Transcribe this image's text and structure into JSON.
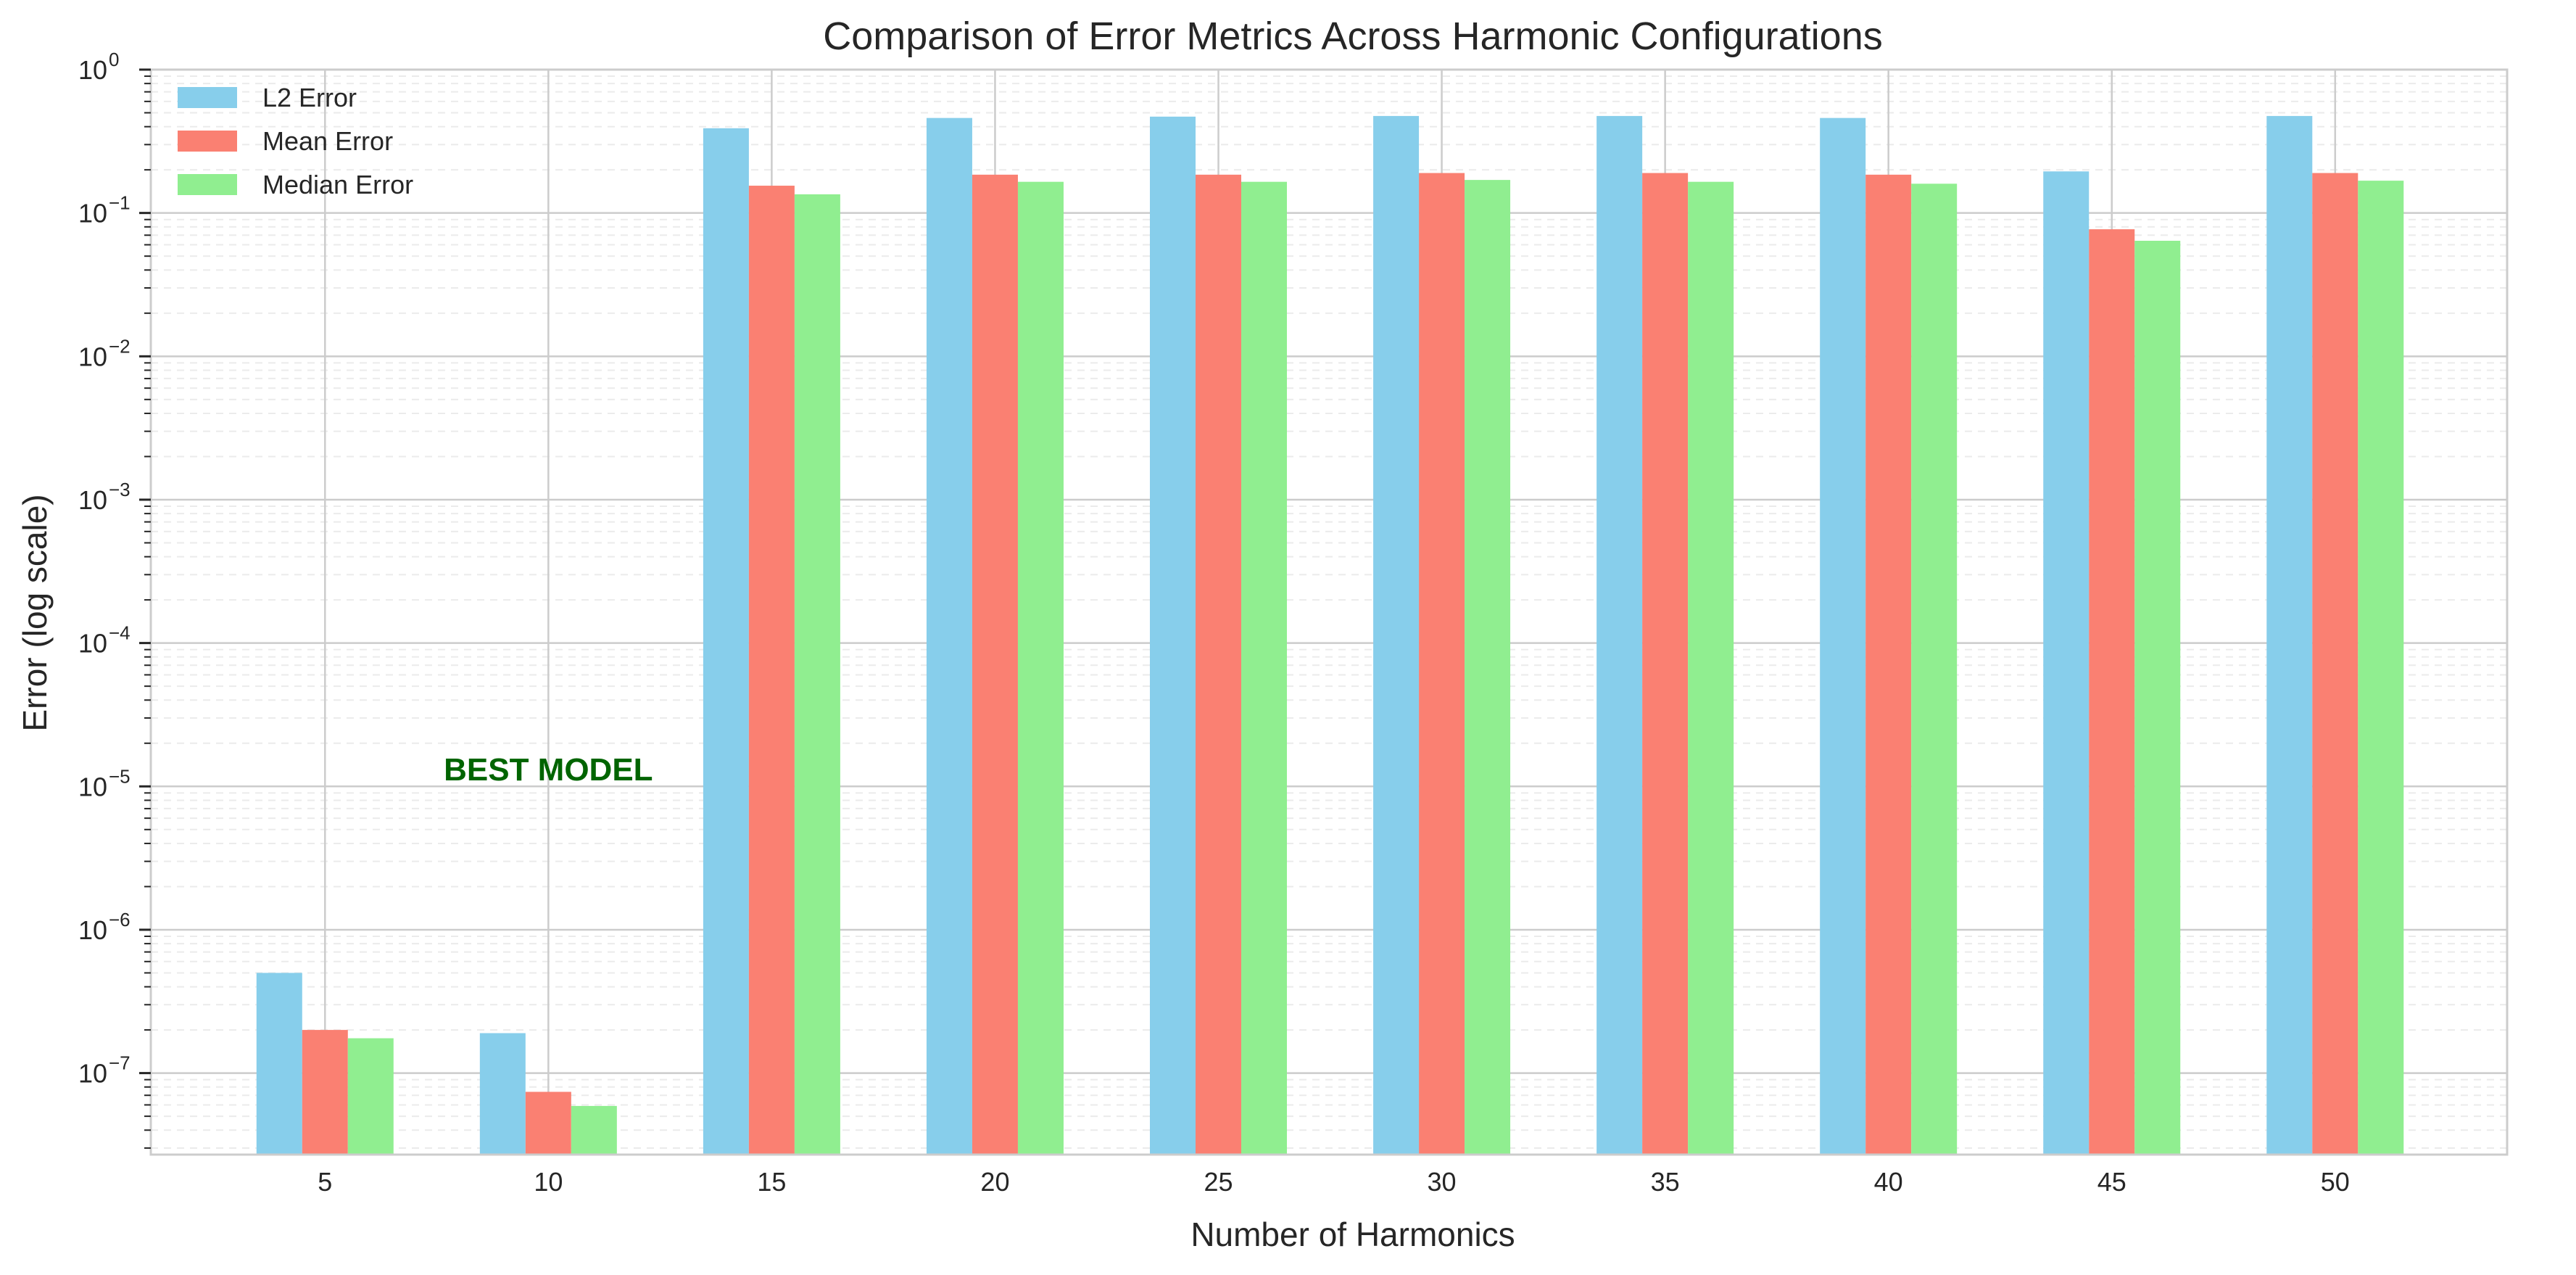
{
  "chart_data": {
    "type": "bar",
    "title": "Comparison of Error Metrics Across Harmonic Configurations",
    "xlabel": "Number of Harmonics",
    "ylabel": "Error (log scale)",
    "yscale": "log",
    "ylim": [
      2.7e-08,
      1.0
    ],
    "y_tick_base": "10",
    "y_tick_exponents": [
      "0",
      "−1",
      "−2",
      "−3",
      "−4",
      "−5",
      "−6",
      "−7"
    ],
    "grid": true,
    "legend_position": "upper-left",
    "categories": [
      "5",
      "10",
      "15",
      "20",
      "25",
      "30",
      "35",
      "40",
      "45",
      "50"
    ],
    "series": [
      {
        "name": "L2 Error",
        "color": "#87CEEB",
        "values": [
          5e-07,
          1.9e-07,
          0.39,
          0.46,
          0.47,
          0.475,
          0.475,
          0.46,
          0.195,
          0.475
        ]
      },
      {
        "name": "Mean Error",
        "color": "#FA8072",
        "values": [
          2e-07,
          7.4e-08,
          0.155,
          0.185,
          0.185,
          0.19,
          0.19,
          0.185,
          0.077,
          0.19
        ]
      },
      {
        "name": "Median Error",
        "color": "#90EE90",
        "values": [
          1.75e-07,
          5.9e-08,
          0.135,
          0.165,
          0.165,
          0.17,
          0.165,
          0.16,
          0.064,
          0.168
        ]
      }
    ],
    "annotations": [
      {
        "text": "BEST MODEL",
        "x": "10",
        "y": 1.1e-05,
        "color": "#006400"
      }
    ]
  }
}
